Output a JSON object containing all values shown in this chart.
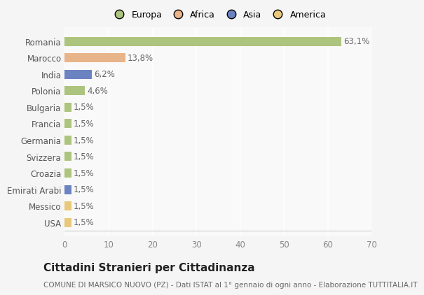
{
  "categories": [
    "Romania",
    "Marocco",
    "India",
    "Polonia",
    "Bulgaria",
    "Francia",
    "Germania",
    "Svizzera",
    "Croazia",
    "Emirati Arabi",
    "Messico",
    "USA"
  ],
  "values": [
    63.1,
    13.8,
    6.2,
    4.6,
    1.5,
    1.5,
    1.5,
    1.5,
    1.5,
    1.5,
    1.5,
    1.5
  ],
  "labels": [
    "63,1%",
    "13,8%",
    "6,2%",
    "4,6%",
    "1,5%",
    "1,5%",
    "1,5%",
    "1,5%",
    "1,5%",
    "1,5%",
    "1,5%",
    "1,5%"
  ],
  "colors": [
    "#adc47e",
    "#e8b48a",
    "#6b83c0",
    "#adc47e",
    "#adc47e",
    "#adc47e",
    "#adc47e",
    "#adc47e",
    "#adc47e",
    "#6b83c0",
    "#e8c87a",
    "#e8c87a"
  ],
  "legend_labels": [
    "Europa",
    "Africa",
    "Asia",
    "America"
  ],
  "legend_colors": [
    "#adc47e",
    "#e8b48a",
    "#6b83c0",
    "#e8c87a"
  ],
  "title": "Cittadini Stranieri per Cittadinanza",
  "subtitle": "COMUNE DI MARSICO NUOVO (PZ) - Dati ISTAT al 1° gennaio di ogni anno - Elaborazione TUTTITALIA.IT",
  "xlim": [
    0,
    70
  ],
  "xticks": [
    0,
    10,
    20,
    30,
    40,
    50,
    60,
    70
  ],
  "background_color": "#f5f5f5",
  "plot_bg_color": "#f9f9f9",
  "grid_color": "#ffffff",
  "bar_height": 0.55,
  "title_fontsize": 11,
  "subtitle_fontsize": 7.5,
  "label_fontsize": 8.5,
  "tick_fontsize": 8.5
}
